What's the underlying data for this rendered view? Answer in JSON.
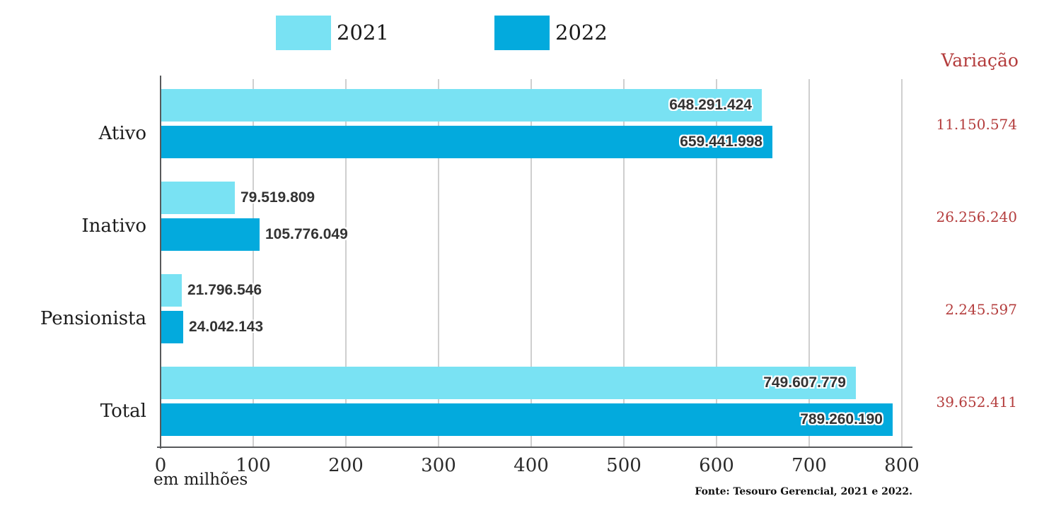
{
  "legend": {
    "items": [
      {
        "label": "2021",
        "color": "#79E2F3"
      },
      {
        "label": "2022",
        "color": "#03AADD"
      }
    ]
  },
  "variacao": {
    "title": "Variação",
    "color": "#B43D3D",
    "values": [
      "11.150.574",
      "26.256.240",
      "2.245.597",
      "39.652.411"
    ]
  },
  "chart_data": {
    "type": "bar",
    "orientation": "horizontal",
    "categories": [
      "Ativo",
      "Inativo",
      "Pensionista",
      "Total"
    ],
    "series": [
      {
        "name": "2021",
        "color": "#79E2F3",
        "values": [
          648291424,
          79519809,
          21796546,
          749607779
        ],
        "value_labels": [
          "648.291.424",
          "79.519.809",
          "21.796.546",
          "749.607.779"
        ]
      },
      {
        "name": "2022",
        "color": "#03AADD",
        "values": [
          659441998,
          105776049,
          24042143,
          789260190
        ],
        "value_labels": [
          "659.441.998",
          "105.776.049",
          "24.042.143",
          "789.260.190"
        ]
      }
    ],
    "variation_series": {
      "name": "Variação",
      "values": [
        11150574,
        26256240,
        2245597,
        39652411
      ]
    },
    "x_axis": {
      "ticks_millions": [
        0,
        100,
        200,
        300,
        400,
        500,
        600,
        700,
        800
      ],
      "range_millions": [
        0,
        800
      ],
      "unit_label": "em milhões"
    },
    "grid": "vertical-gridlines",
    "legend_position": "top"
  },
  "footer": {
    "source": "Fonte: Tesouro Gerencial, 2021 e 2022."
  }
}
